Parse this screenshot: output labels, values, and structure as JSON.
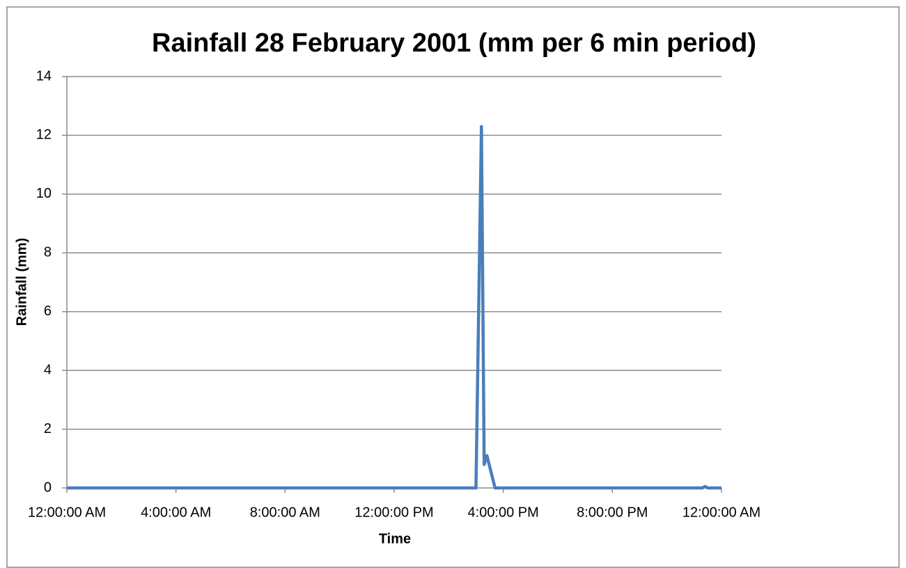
{
  "chart_data": {
    "type": "line",
    "title": "Rainfall 28 February 2001 (mm per 6 min period)",
    "x_label": "Time",
    "y_label": "Rainfall (mm)",
    "x": [
      0,
      15.0,
      15.2,
      15.3,
      15.4,
      15.7,
      23.3,
      23.4,
      23.5,
      24
    ],
    "series": [
      {
        "name": "Rainfall",
        "color": "#4a7ebb",
        "values": [
          0,
          0,
          12.3,
          0.8,
          1.1,
          0,
          0,
          0.05,
          0,
          0
        ]
      }
    ],
    "xlim": [
      0,
      24
    ],
    "xticks": [
      {
        "value": 0,
        "label": "12:00:00 AM"
      },
      {
        "value": 4,
        "label": "4:00:00 AM"
      },
      {
        "value": 8,
        "label": "8:00:00 AM"
      },
      {
        "value": 12,
        "label": "12:00:00 PM"
      },
      {
        "value": 16,
        "label": "4:00:00 PM"
      },
      {
        "value": 20,
        "label": "8:00:00 PM"
      },
      {
        "value": 24,
        "label": "12:00:00 AM"
      }
    ],
    "ylim": [
      0,
      14
    ],
    "yticks": [
      0,
      2,
      4,
      6,
      8,
      10,
      12,
      14
    ],
    "grid": true
  }
}
